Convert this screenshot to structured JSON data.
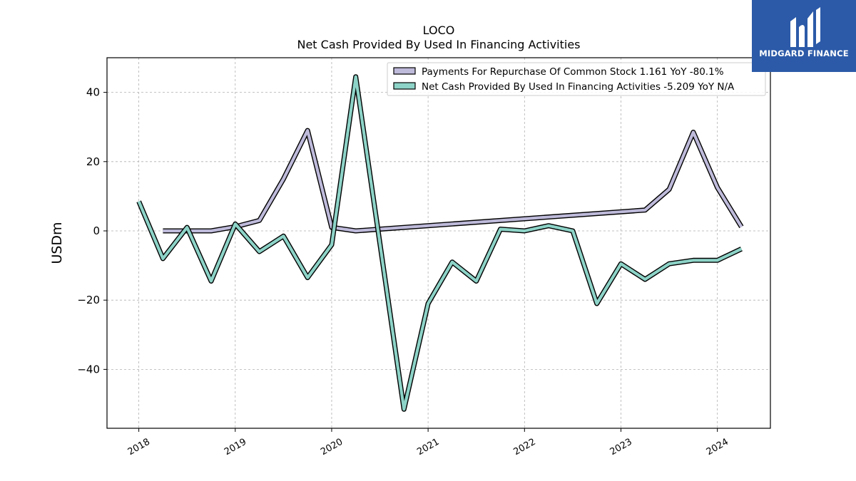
{
  "chart_data": {
    "type": "line",
    "title": "LOCO",
    "subtitle": "Net Cash Provided By Used In Financing Activities",
    "ylabel": "USDm",
    "xlabel": "",
    "ylim": [
      -57,
      50
    ],
    "xlim": [
      2017.67,
      2024.55
    ],
    "x_ticks": [
      2018,
      2019,
      2020,
      2021,
      2022,
      2023,
      2024
    ],
    "y_ticks": [
      -40,
      -20,
      0,
      20,
      40
    ],
    "y_tick_labels": [
      "−40",
      "−20",
      "0",
      "20",
      "40"
    ],
    "grid": true,
    "legend_position": "top-right",
    "series": [
      {
        "name": "Payments For Repurchase Of Common Stock",
        "legend_label": "Payments For Repurchase Of Common Stock  1.161 YoY -80.1%",
        "color": "#bebada",
        "x": [
          2018.25,
          2018.5,
          2018.75,
          2019.0,
          2019.25,
          2019.5,
          2019.75,
          2020.0,
          2020.25,
          2023.25,
          2023.5,
          2023.75,
          2024.0,
          2024.25
        ],
        "y": [
          0,
          0,
          0,
          1.2,
          3.0,
          15.0,
          29.0,
          1.0,
          0,
          6.0,
          12.0,
          28.5,
          12.5,
          1.161
        ]
      },
      {
        "name": "Net Cash Provided By Used In Financing Activities",
        "legend_label": "Net Cash Provided By Used In Financing Activities  -5.209 YoY N/A",
        "color": "#8dd3c7",
        "x": [
          2018.0,
          2018.25,
          2018.5,
          2018.75,
          2019.0,
          2019.25,
          2019.5,
          2019.75,
          2020.0,
          2020.25,
          2020.75,
          2021.0,
          2021.25,
          2021.5,
          2021.75,
          2022.0,
          2022.25,
          2022.5,
          2022.75,
          2023.0,
          2023.25,
          2023.5,
          2023.75,
          2024.0,
          2024.25
        ],
        "y": [
          8.5,
          -8.0,
          1.0,
          -14.5,
          2.0,
          -6.0,
          -1.5,
          -13.5,
          -4.0,
          44.5,
          -51.5,
          -21.0,
          -9.0,
          -14.5,
          0.5,
          0,
          1.5,
          0,
          -21.0,
          -9.5,
          -14.0,
          -9.5,
          -8.5,
          -8.5,
          -5.209
        ]
      }
    ]
  },
  "logo": {
    "text": "MIDGARD FINANCE",
    "color": "#2c5aa8"
  }
}
